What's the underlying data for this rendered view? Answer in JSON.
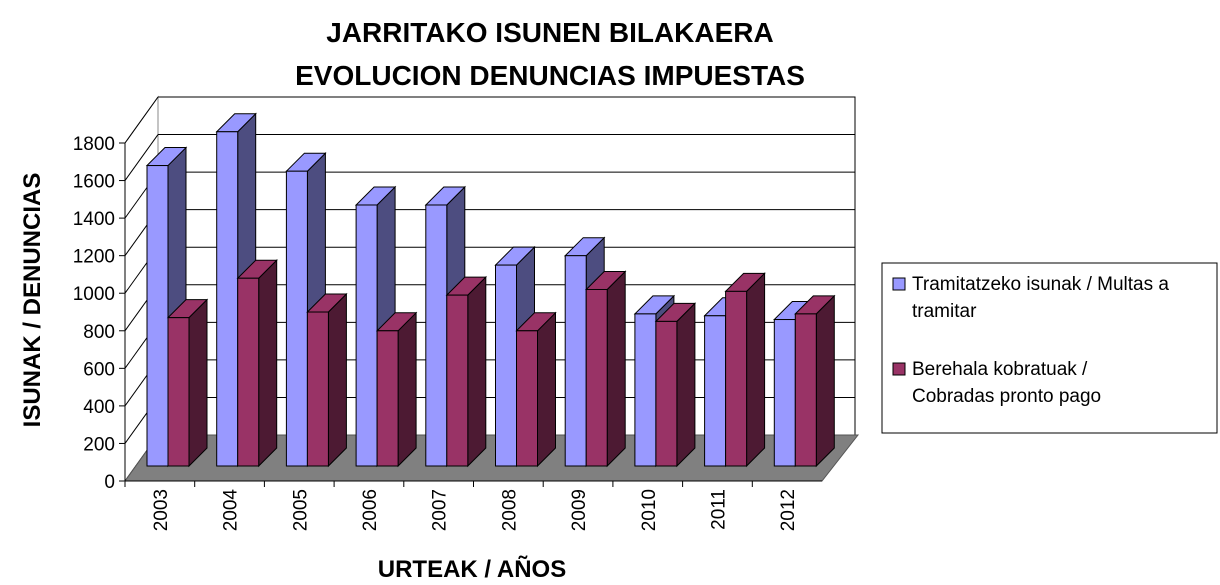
{
  "chart_data": {
    "type": "bar3d",
    "title": [
      "JARRITAKO ISUNEN BILAKAERA",
      "EVOLUCION DENUNCIAS IMPUESTAS"
    ],
    "x_label": "URTEAK / AÑOS",
    "y_label": "ISUNAK / DENUNCIAS",
    "categories": [
      "2003",
      "2004",
      "2005",
      "2006",
      "2007",
      "2008",
      "2009",
      "2010",
      "2011",
      "2012"
    ],
    "series": [
      {
        "name": "Tramitatzeko isunak / Multas a tramitar",
        "color": "#9999ff",
        "values": [
          1600,
          1780,
          1570,
          1390,
          1390,
          1070,
          1120,
          810,
          800,
          780
        ]
      },
      {
        "name": "Berehala kobratuak / Cobradas pronto pago",
        "color": "#993366",
        "values": [
          790,
          1000,
          820,
          720,
          910,
          720,
          940,
          770,
          930,
          810
        ]
      }
    ],
    "ylim": [
      0,
      1800
    ],
    "yticks": [
      0,
      200,
      400,
      600,
      800,
      1000,
      1200,
      1400,
      1600,
      1800
    ],
    "grid": true,
    "legend": "right"
  }
}
